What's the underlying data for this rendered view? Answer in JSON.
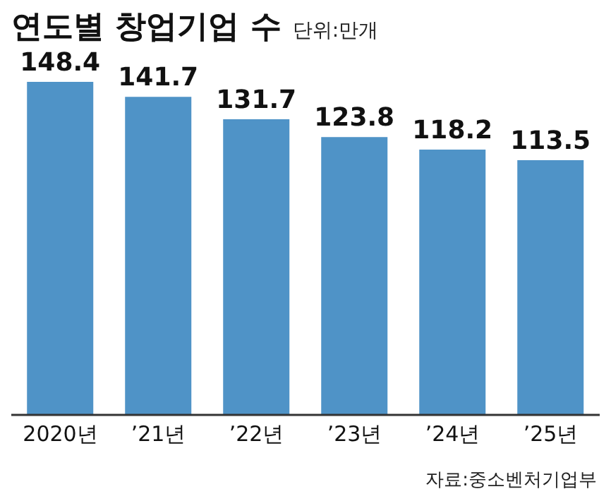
{
  "chart_data": {
    "type": "bar",
    "title": "연도별 창업기업 수",
    "subtitle": "단위:만개",
    "categories": [
      "2020년",
      "’21년",
      "’22년",
      "’23년",
      "’24년",
      "’25년"
    ],
    "values": [
      148.4,
      141.7,
      131.7,
      123.8,
      118.2,
      113.5
    ],
    "color": "#4f93c7",
    "tick_labels": "x",
    "data_labels": true,
    "annotations": [
      "자료:중소벤처기업부"
    ]
  }
}
